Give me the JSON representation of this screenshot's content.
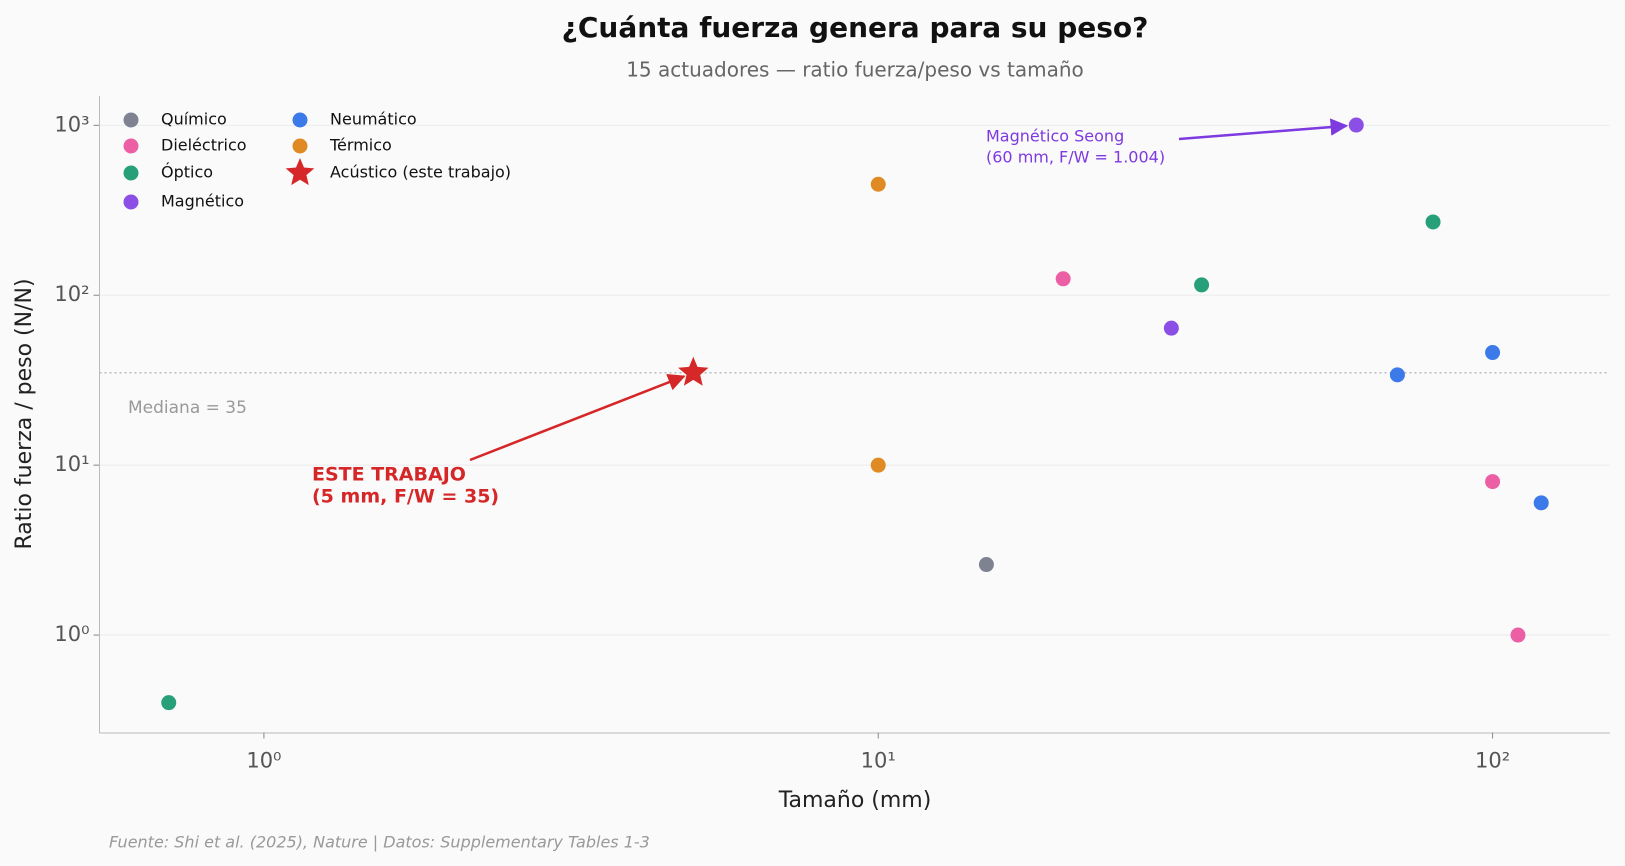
{
  "chart_data": {
    "type": "scatter",
    "title": "¿Cuánta fuerza genera para su peso?",
    "subtitle": "15 actuadores — ratio fuerza/peso vs tamaño",
    "x_label": "Tamaño (mm)",
    "y_label": "Ratio fuerza / peso (N/N)",
    "source": "Fuente: Shi et al. (2025), Nature | Datos: Supplementary Tables 1-3",
    "x_scale": "log",
    "y_scale": "log",
    "xlim": [
      0.54,
      155
    ],
    "ylim": [
      0.267,
      1480
    ],
    "xticks": [
      {
        "value": 1,
        "label": "10⁰"
      },
      {
        "value": 10,
        "label": "10¹"
      },
      {
        "value": 100,
        "label": "10²"
      }
    ],
    "yticks": [
      {
        "value": 1,
        "label": "10⁰"
      },
      {
        "value": 10,
        "label": "10¹"
      },
      {
        "value": 100,
        "label": "10²"
      },
      {
        "value": 1000,
        "label": "10³"
      }
    ],
    "grid": "y",
    "legend_position": "upper left",
    "series": [
      {
        "name": "Químico",
        "color": "#7f8391",
        "marker": "circle",
        "x": [
          15
        ],
        "values": [
          2.6
        ]
      },
      {
        "name": "Dieléctrico",
        "color": "#ec5fa5",
        "marker": "circle",
        "x": [
          20,
          100,
          110
        ],
        "values": [
          125,
          8,
          1
        ]
      },
      {
        "name": "Óptico",
        "color": "#27a07a",
        "marker": "circle",
        "x": [
          0.7,
          33.6,
          80
        ],
        "values": [
          0.4,
          115,
          270
        ]
      },
      {
        "name": "Magnético",
        "color": "#8b4fe6",
        "marker": "circle",
        "x": [
          30,
          60
        ],
        "values": [
          64,
          1004
        ]
      },
      {
        "name": "Neumático",
        "color": "#3b7ae8",
        "marker": "circle",
        "x": [
          70,
          100,
          120
        ],
        "values": [
          34,
          46,
          6
        ]
      },
      {
        "name": "Térmico",
        "color": "#e08a23",
        "marker": "circle",
        "x": [
          10,
          10
        ],
        "values": [
          450,
          10
        ]
      },
      {
        "name": "Acústico (este trabajo)",
        "color": "#d62828",
        "marker": "star",
        "x": [
          5
        ],
        "values": [
          35
        ]
      }
    ],
    "reference_line": {
      "value": 35,
      "label": "Mediana = 35",
      "style": "dotted"
    },
    "annotations": [
      {
        "text": [
          "ESTE TRABAJO",
          "(5 mm, F/W = 35)"
        ],
        "xy": [
          5,
          35
        ],
        "color": "#d62728",
        "bold": true
      },
      {
        "text": [
          "Magnético Seong",
          "(60 mm, F/W = 1.004)"
        ],
        "xy": [
          60,
          1004
        ],
        "color": "#7d3ae0",
        "bold": false
      }
    ]
  }
}
